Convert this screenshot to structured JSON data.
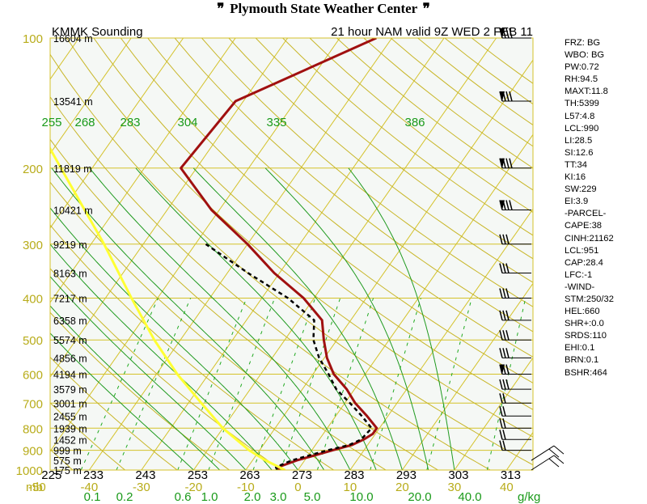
{
  "header": {
    "title": "Plymouth State Weather Center",
    "flag_icon": "wind-barb-flag-icon"
  },
  "chart_data": {
    "type": "line",
    "chart_kind": "skew-T log-P sounding",
    "title_left": "KMMK Sounding",
    "title_right": "21 hour NAM valid 9Z WED 2 FEB 11",
    "pressure_unit": "mb",
    "mixing_ratio_unit": "g/kg",
    "pressure_levels": [
      100,
      200,
      300,
      400,
      500,
      600,
      700,
      800,
      900,
      1000
    ],
    "pressure_range": [
      100,
      1000
    ],
    "temperature_ticks": [
      -50,
      -40,
      -30,
      -20,
      -10,
      0,
      10,
      20,
      30,
      40
    ],
    "temperature_tick_labels": [
      "-50",
      "-40",
      "-30",
      "-20",
      "-10",
      "0",
      "10",
      "20",
      "30",
      "40"
    ],
    "temperature_range": [
      -55,
      48
    ],
    "height_labels": [
      {
        "p": 100,
        "label": "16604 m"
      },
      {
        "p": 140,
        "label": "13541 m"
      },
      {
        "p": 200,
        "label": "11819 m"
      },
      {
        "p": 250,
        "label": "10421 m"
      },
      {
        "p": 300,
        "label": "9219 m"
      },
      {
        "p": 350,
        "label": "8163 m"
      },
      {
        "p": 400,
        "label": "7217 m"
      },
      {
        "p": 450,
        "label": "6358 m"
      },
      {
        "p": 500,
        "label": "5574 m"
      },
      {
        "p": 550,
        "label": "4856 m"
      },
      {
        "p": 600,
        "label": "4194 m"
      },
      {
        "p": 650,
        "label": "3579 m"
      },
      {
        "p": 700,
        "label": "3001 m"
      },
      {
        "p": 750,
        "label": "2455 m"
      },
      {
        "p": 800,
        "label": "1939 m"
      },
      {
        "p": 850,
        "label": "1452 m"
      },
      {
        "p": 900,
        "label": "999 m"
      },
      {
        "p": 950,
        "label": "575 m"
      },
      {
        "p": 1000,
        "label": "175 m"
      }
    ],
    "dry_adiabat_labels_K": [
      "225",
      "233",
      "243",
      "253",
      "263",
      "273",
      "283",
      "293",
      "303",
      "313"
    ],
    "dry_adiabat_values_K": [
      225,
      233,
      243,
      253,
      263,
      273,
      283,
      293,
      303,
      313
    ],
    "moist_adiabat_labels_K": [
      "255",
      "268",
      "283",
      "304",
      "335",
      "386"
    ],
    "mixing_ratio_labels": [
      "0.1",
      "0.2",
      "0.6",
      "1.0",
      "2.0",
      "3.0",
      "5.0",
      "10.0",
      "20.0",
      "40.0"
    ],
    "mixing_ratio_values": [
      0.1,
      0.2,
      0.6,
      1.0,
      2.0,
      3.0,
      5.0,
      10.0,
      20.0,
      40.0
    ],
    "series": [
      {
        "kind": "temperature",
        "color": "#a01010",
        "points": [
          {
            "p": 1000,
            "t": -3.6
          },
          {
            "p": 985,
            "t": -4.2
          },
          {
            "p": 950,
            "t": -1.5
          },
          {
            "p": 900,
            "t": 4.0
          },
          {
            "p": 875,
            "t": 7.0
          },
          {
            "p": 850,
            "t": 8.5
          },
          {
            "p": 825,
            "t": 9.5
          },
          {
            "p": 800,
            "t": 9.5
          },
          {
            "p": 750,
            "t": 6.0
          },
          {
            "p": 700,
            "t": 2.0
          },
          {
            "p": 650,
            "t": -1.5
          },
          {
            "p": 600,
            "t": -6.0
          },
          {
            "p": 550,
            "t": -9.5
          },
          {
            "p": 500,
            "t": -12.5
          },
          {
            "p": 450,
            "t": -15.5
          },
          {
            "p": 400,
            "t": -22.0
          },
          {
            "p": 350,
            "t": -31.0
          },
          {
            "p": 300,
            "t": -40.0
          },
          {
            "p": 250,
            "t": -51.5
          },
          {
            "p": 200,
            "t": -63.0
          },
          {
            "p": 140,
            "t": -61.5
          },
          {
            "p": 100,
            "t": -43.0
          }
        ]
      },
      {
        "kind": "dewpoint",
        "color": "#000000",
        "points": [
          {
            "p": 1000,
            "t": -4.0
          },
          {
            "p": 985,
            "t": -4.6
          },
          {
            "p": 950,
            "t": -2.5
          },
          {
            "p": 900,
            "t": 3.0
          },
          {
            "p": 875,
            "t": 6.5
          },
          {
            "p": 850,
            "t": 8.0
          },
          {
            "p": 800,
            "t": 8.5
          },
          {
            "p": 750,
            "t": 5.0
          },
          {
            "p": 700,
            "t": 1.0
          },
          {
            "p": 650,
            "t": -3.5
          },
          {
            "p": 600,
            "t": -7.0
          },
          {
            "p": 550,
            "t": -11.0
          },
          {
            "p": 500,
            "t": -14.5
          },
          {
            "p": 450,
            "t": -17.0
          },
          {
            "p": 400,
            "t": -25.0
          },
          {
            "p": 350,
            "t": -36.0
          },
          {
            "p": 300,
            "t": -48.0
          }
        ]
      },
      {
        "kind": "parcel",
        "color": "#ffff33",
        "points": [
          {
            "p": 1000,
            "t": -2.5
          },
          {
            "p": 950,
            "t": -7.5
          },
          {
            "p": 900,
            "t": -12.0
          },
          {
            "p": 800,
            "t": -20.0
          },
          {
            "p": 700,
            "t": -27.5
          },
          {
            "p": 600,
            "t": -36.0
          },
          {
            "p": 500,
            "t": -45.0
          },
          {
            "p": 400,
            "t": -55.0
          },
          {
            "p": 300,
            "t": -67.5
          },
          {
            "p": 200,
            "t": -86.0
          },
          {
            "p": 110,
            "t": -113.0
          }
        ]
      }
    ],
    "wind_barb_pressures": [
      100,
      140,
      200,
      250,
      300,
      350,
      400,
      450,
      500,
      550,
      600,
      650,
      700,
      750,
      800,
      850,
      900,
      950,
      1000
    ],
    "stats": [
      "FRZ: BG",
      "WBO: BG",
      "PW:0.72",
      "RH:94.5",
      "MAXT:11.8",
      "TH:5399",
      "L57:4.8",
      "LCL:990",
      "LI:28.5",
      "SI:12.6",
      "TT:34",
      "KI:16",
      "SW:229",
      "EI:3.9",
      "-PARCEL-",
      "CAPE:38",
      "CINH:21162",
      "LCL:951",
      "CAP:28.4",
      "LFC:-1",
      "-WIND-",
      "STM:250/32",
      "HEL:660",
      "SHR+:0.0",
      "SRDS:110",
      "EHI:0.1",
      "BRN:0.1",
      "BSHR:464"
    ]
  },
  "colors": {
    "isobar": "#d4c22a",
    "isotherm": "#d4c22a",
    "dry_adiabat": "#c8b628",
    "moist_adiabat": "#1f9a1f",
    "mixing_ratio": "#22aa22",
    "plot_background": "#f5f8f5",
    "label_olive": "#b8ac1a",
    "label_green": "#1a9a1a"
  }
}
